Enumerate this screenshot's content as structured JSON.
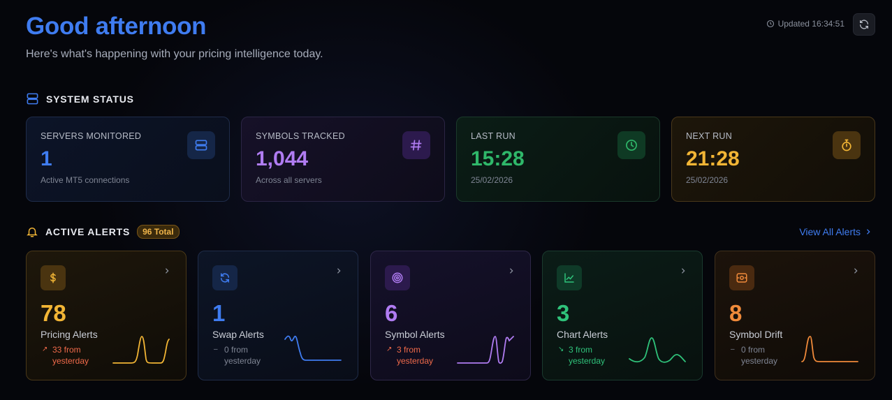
{
  "header": {
    "greeting": "Good afternoon",
    "subtitle": "Here's what's happening with your pricing intelligence today.",
    "updated": "Updated 16:34:51"
  },
  "system_status": {
    "title": "SYSTEM STATUS",
    "cards": [
      {
        "label": "SERVERS MONITORED",
        "value": "1",
        "sub": "Active MT5 connections",
        "color": "#3f7cf0",
        "icon": "server-icon"
      },
      {
        "label": "SYMBOLS TRACKED",
        "value": "1,044",
        "sub": "Across all servers",
        "color": "#b07cf2",
        "icon": "hash-icon"
      },
      {
        "label": "LAST RUN",
        "value": "15:28",
        "sub": "25/02/2026",
        "color": "#2fb86a",
        "icon": "clock-icon"
      },
      {
        "label": "NEXT RUN",
        "value": "21:28",
        "sub": "25/02/2026",
        "color": "#f2b535",
        "icon": "stopwatch-icon"
      }
    ]
  },
  "active_alerts": {
    "title": "ACTIVE ALERTS",
    "badge": "96 Total",
    "view_all": "View All Alerts",
    "cards": [
      {
        "value": "78",
        "label": "Pricing Alerts",
        "delta_line1": "33 from",
        "delta_line2": "yesterday",
        "delta_arrow": "↗",
        "delta_color": "#f06a4a",
        "color": "#f2b535",
        "icon": "dollar-icon"
      },
      {
        "value": "1",
        "label": "Swap Alerts",
        "delta_line1": "0 from",
        "delta_line2": "yesterday",
        "delta_arrow": "–",
        "delta_color": "#7f8594",
        "color": "#3f7cf0",
        "icon": "swap-icon"
      },
      {
        "value": "6",
        "label": "Symbol Alerts",
        "delta_line1": "3 from",
        "delta_line2": "yesterday",
        "delta_arrow": "↗",
        "delta_color": "#f06a4a",
        "color": "#b07cf2",
        "icon": "target-icon"
      },
      {
        "value": "3",
        "label": "Chart Alerts",
        "delta_line1": "3 from",
        "delta_line2": "yesterday",
        "delta_arrow": "↘",
        "delta_color": "#2fc27a",
        "color": "#2fc27a",
        "icon": "chart-icon"
      },
      {
        "value": "8",
        "label": "Symbol Drift",
        "delta_line1": "0 from",
        "delta_line2": "yesterday",
        "delta_arrow": "–",
        "delta_color": "#7f8594",
        "color": "#f08a3a",
        "icon": "drift-icon"
      }
    ]
  }
}
